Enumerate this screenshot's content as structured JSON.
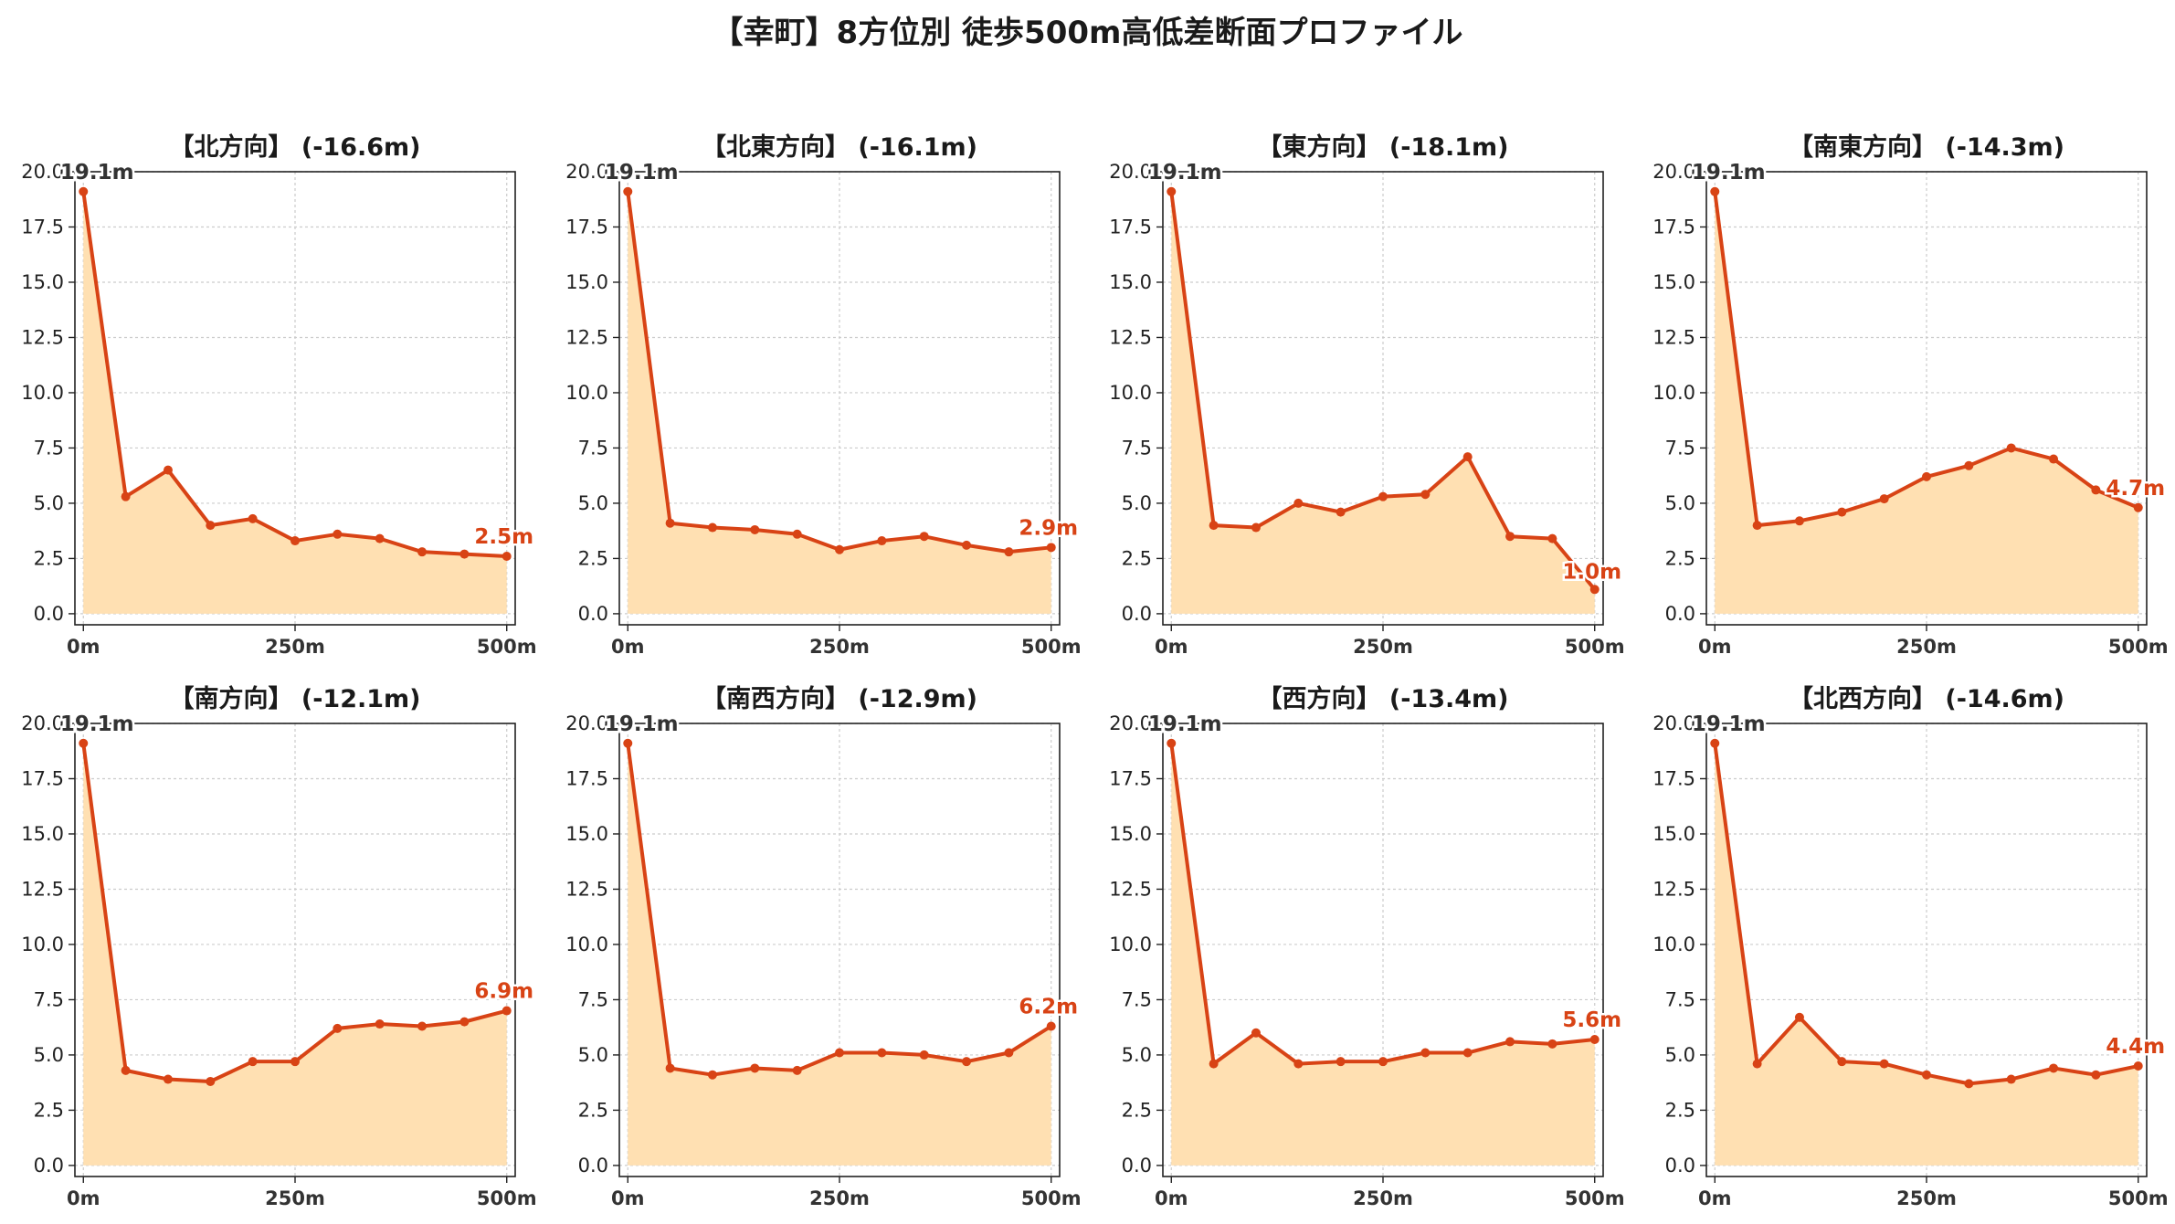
{
  "title": "【幸町】8方位別 徒歩500m高低差断面プロファイル",
  "colors": {
    "line": "#d84315",
    "fill": "#ffe0b2",
    "grid": "#cccccc",
    "axis": "#222222",
    "label_dark": "#333333"
  },
  "chart_data": [
    {
      "type": "area",
      "title": "【北方向】 (-16.6m)",
      "x": [
        0,
        50,
        100,
        150,
        200,
        250,
        300,
        350,
        400,
        450,
        500
      ],
      "series": [
        {
          "values": [
            19.1,
            5.3,
            6.5,
            4.0,
            4.3,
            3.3,
            3.6,
            3.4,
            2.8,
            2.7,
            2.6
          ]
        }
      ],
      "xticks": [
        "0m",
        "250m",
        "500m"
      ],
      "yticks": [
        "0.0",
        "2.5",
        "5.0",
        "7.5",
        "10.0",
        "12.5",
        "15.0",
        "17.5",
        "20.0"
      ],
      "ylim": [
        -0.5,
        20.0
      ],
      "xlim": [
        -10,
        510
      ],
      "grid": true,
      "annotations": {
        "start": "19.1m",
        "end": "2.5m"
      }
    },
    {
      "type": "area",
      "title": "【北東方向】 (-16.1m)",
      "x": [
        0,
        50,
        100,
        150,
        200,
        250,
        300,
        350,
        400,
        450,
        500
      ],
      "series": [
        {
          "values": [
            19.1,
            4.1,
            3.9,
            3.8,
            3.6,
            2.9,
            3.3,
            3.5,
            3.1,
            2.8,
            3.0
          ]
        }
      ],
      "xticks": [
        "0m",
        "250m",
        "500m"
      ],
      "yticks": [
        "0.0",
        "2.5",
        "5.0",
        "7.5",
        "10.0",
        "12.5",
        "15.0",
        "17.5",
        "20.0"
      ],
      "ylim": [
        -0.5,
        20.0
      ],
      "xlim": [
        -10,
        510
      ],
      "grid": true,
      "annotations": {
        "start": "19.1m",
        "end": "2.9m"
      }
    },
    {
      "type": "area",
      "title": "【東方向】 (-18.1m)",
      "x": [
        0,
        50,
        100,
        150,
        200,
        250,
        300,
        350,
        400,
        450,
        500
      ],
      "series": [
        {
          "values": [
            19.1,
            4.0,
            3.9,
            5.0,
            4.6,
            5.3,
            5.4,
            7.1,
            3.5,
            3.4,
            1.1
          ]
        }
      ],
      "xticks": [
        "0m",
        "250m",
        "500m"
      ],
      "yticks": [
        "0.0",
        "2.5",
        "5.0",
        "7.5",
        "10.0",
        "12.5",
        "15.0",
        "17.5",
        "20.0"
      ],
      "ylim": [
        -0.5,
        20.0
      ],
      "xlim": [
        -10,
        510
      ],
      "grid": true,
      "annotations": {
        "start": "19.1m",
        "end": "1.0m"
      }
    },
    {
      "type": "area",
      "title": "【南東方向】 (-14.3m)",
      "x": [
        0,
        50,
        100,
        150,
        200,
        250,
        300,
        350,
        400,
        450,
        500
      ],
      "series": [
        {
          "values": [
            19.1,
            4.0,
            4.2,
            4.6,
            5.2,
            6.2,
            6.7,
            7.5,
            7.0,
            5.6,
            4.8
          ]
        }
      ],
      "xticks": [
        "0m",
        "250m",
        "500m"
      ],
      "yticks": [
        "0.0",
        "2.5",
        "5.0",
        "7.5",
        "10.0",
        "12.5",
        "15.0",
        "17.5",
        "20.0"
      ],
      "ylim": [
        -0.5,
        20.0
      ],
      "xlim": [
        -10,
        510
      ],
      "grid": true,
      "annotations": {
        "start": "19.1m",
        "end": "4.7m"
      }
    },
    {
      "type": "area",
      "title": "【南方向】 (-12.1m)",
      "x": [
        0,
        50,
        100,
        150,
        200,
        250,
        300,
        350,
        400,
        450,
        500
      ],
      "series": [
        {
          "values": [
            19.1,
            4.3,
            3.9,
            3.8,
            4.7,
            4.7,
            6.2,
            6.4,
            6.3,
            6.5,
            7.0
          ]
        }
      ],
      "xticks": [
        "0m",
        "250m",
        "500m"
      ],
      "yticks": [
        "0.0",
        "2.5",
        "5.0",
        "7.5",
        "10.0",
        "12.5",
        "15.0",
        "17.5",
        "20.0"
      ],
      "ylim": [
        -0.5,
        20.0
      ],
      "xlim": [
        -10,
        510
      ],
      "grid": true,
      "annotations": {
        "start": "19.1m",
        "end": "6.9m"
      }
    },
    {
      "type": "area",
      "title": "【南西方向】 (-12.9m)",
      "x": [
        0,
        50,
        100,
        150,
        200,
        250,
        300,
        350,
        400,
        450,
        500
      ],
      "series": [
        {
          "values": [
            19.1,
            4.4,
            4.1,
            4.4,
            4.3,
            5.1,
            5.1,
            5.0,
            4.7,
            5.1,
            6.3
          ]
        }
      ],
      "xticks": [
        "0m",
        "250m",
        "500m"
      ],
      "yticks": [
        "0.0",
        "2.5",
        "5.0",
        "7.5",
        "10.0",
        "12.5",
        "15.0",
        "17.5",
        "20.0"
      ],
      "ylim": [
        -0.5,
        20.0
      ],
      "xlim": [
        -10,
        510
      ],
      "grid": true,
      "annotations": {
        "start": "19.1m",
        "end": "6.2m"
      }
    },
    {
      "type": "area",
      "title": "【西方向】 (-13.4m)",
      "x": [
        0,
        50,
        100,
        150,
        200,
        250,
        300,
        350,
        400,
        450,
        500
      ],
      "series": [
        {
          "values": [
            19.1,
            4.6,
            6.0,
            4.6,
            4.7,
            4.7,
            5.1,
            5.1,
            5.6,
            5.5,
            5.7
          ]
        }
      ],
      "xticks": [
        "0m",
        "250m",
        "500m"
      ],
      "yticks": [
        "0.0",
        "2.5",
        "5.0",
        "7.5",
        "10.0",
        "12.5",
        "15.0",
        "17.5",
        "20.0"
      ],
      "ylim": [
        -0.5,
        20.0
      ],
      "xlim": [
        -10,
        510
      ],
      "grid": true,
      "annotations": {
        "start": "19.1m",
        "end": "5.6m"
      }
    },
    {
      "type": "area",
      "title": "【北西方向】 (-14.6m)",
      "x": [
        0,
        50,
        100,
        150,
        200,
        250,
        300,
        350,
        400,
        450,
        500
      ],
      "series": [
        {
          "values": [
            19.1,
            4.6,
            6.7,
            4.7,
            4.6,
            4.1,
            3.7,
            3.9,
            4.4,
            4.1,
            4.5
          ]
        }
      ],
      "xticks": [
        "0m",
        "250m",
        "500m"
      ],
      "yticks": [
        "0.0",
        "2.5",
        "5.0",
        "7.5",
        "10.0",
        "12.5",
        "15.0",
        "17.5",
        "20.0"
      ],
      "ylim": [
        -0.5,
        20.0
      ],
      "xlim": [
        -10,
        510
      ],
      "grid": true,
      "annotations": {
        "start": "19.1m",
        "end": "4.4m"
      }
    }
  ]
}
